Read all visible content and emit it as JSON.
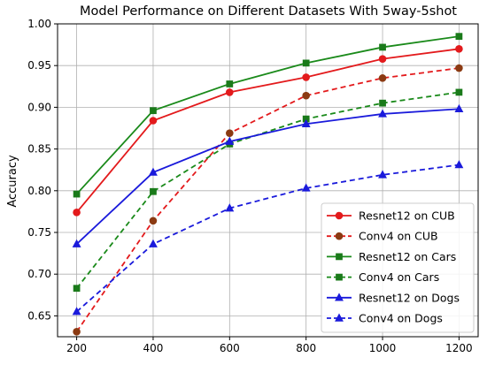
{
  "chart_data": {
    "type": "line",
    "title": "Model Performance on Different Datasets With 5way-5shot",
    "xlabel": "",
    "ylabel": "Accuracy",
    "x": [
      200,
      400,
      600,
      800,
      1000,
      1200
    ],
    "xlim": [
      150,
      1250
    ],
    "ylim": [
      0.625,
      1.0
    ],
    "xticks": [
      200,
      400,
      600,
      800,
      1000,
      1200
    ],
    "yticks": [
      0.65,
      0.7,
      0.75,
      0.8,
      0.85,
      0.9,
      0.95,
      1.0
    ],
    "grid": true,
    "legend_position": "lower-right",
    "series": [
      {
        "name": "Resnet12 on CUB",
        "color": "#e31a1c",
        "linestyle": "solid",
        "marker": "circle",
        "markercolor": "#e31a1c",
        "values": [
          0.774,
          0.884,
          0.918,
          0.936,
          0.958,
          0.97
        ]
      },
      {
        "name": "Conv4 on CUB",
        "color": "#e31a1c",
        "linestyle": "dashed",
        "marker": "circle",
        "markercolor": "#8b3a12",
        "values": [
          0.631,
          0.764,
          0.869,
          0.914,
          0.935,
          0.947
        ]
      },
      {
        "name": "Resnet12 on Cars",
        "color": "#1a8a1a",
        "linestyle": "solid",
        "marker": "square",
        "markercolor": "#1a7a1a",
        "values": [
          0.796,
          0.896,
          0.928,
          0.953,
          0.972,
          0.985
        ]
      },
      {
        "name": "Conv4 on Cars",
        "color": "#1a8a1a",
        "linestyle": "dashed",
        "marker": "square",
        "markercolor": "#1a7a1a",
        "values": [
          0.683,
          0.799,
          0.856,
          0.886,
          0.905,
          0.918
        ]
      },
      {
        "name": "Resnet12 on Dogs",
        "color": "#1a1adb",
        "linestyle": "solid",
        "marker": "triangle",
        "markercolor": "#1a1adb",
        "values": [
          0.736,
          0.822,
          0.859,
          0.88,
          0.892,
          0.898
        ]
      },
      {
        "name": "Conv4 on Dogs",
        "color": "#1a1adb",
        "linestyle": "dashed",
        "marker": "triangle",
        "markercolor": "#1a1adb",
        "values": [
          0.655,
          0.736,
          0.779,
          0.803,
          0.819,
          0.831
        ]
      }
    ]
  }
}
